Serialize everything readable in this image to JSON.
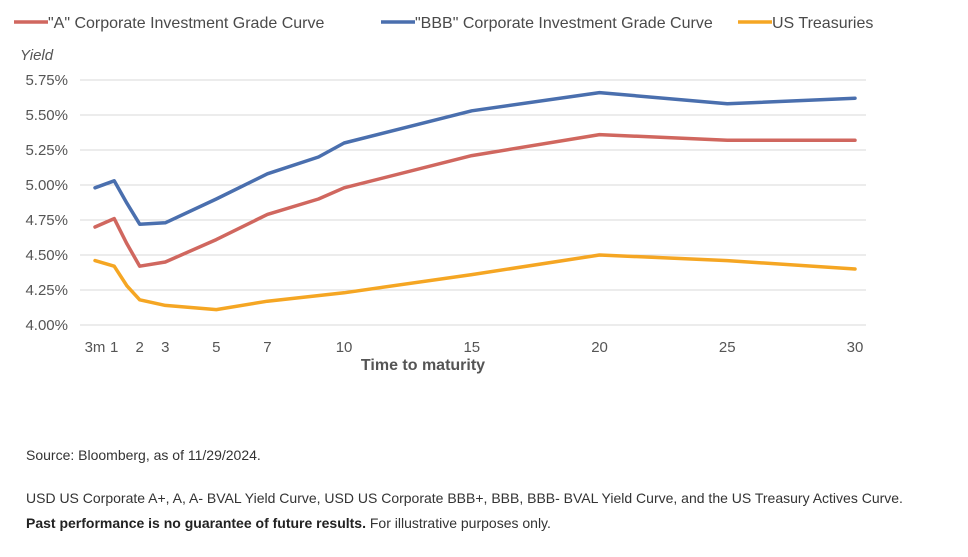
{
  "chart_data": {
    "type": "line",
    "ylabel": "Yield",
    "xlabel": "Time to maturity",
    "x": [
      0.25,
      1,
      2,
      3,
      5,
      7,
      10,
      15,
      20,
      25,
      30
    ],
    "x_tick_labels": [
      "3m",
      "1",
      "2",
      "3",
      "5",
      "7",
      "10",
      "15",
      "20",
      "25",
      "30"
    ],
    "ylim": [
      4.0,
      5.75
    ],
    "y_ticks": [
      "4.00%",
      "4.25%",
      "4.50%",
      "4.75%",
      "5.00%",
      "5.25%",
      "5.50%",
      "5.75%"
    ],
    "grid": true,
    "legend_position": "top",
    "series": [
      {
        "name": "\"A\" Corporate Investment Grade Curve",
        "color": "#d0675f",
        "points": [
          [
            0.25,
            4.7
          ],
          [
            1,
            4.76
          ],
          [
            1.5,
            4.58
          ],
          [
            2,
            4.42
          ],
          [
            3,
            4.45
          ],
          [
            5,
            4.61
          ],
          [
            7,
            4.79
          ],
          [
            9,
            4.9
          ],
          [
            10,
            4.98
          ],
          [
            15,
            5.21
          ],
          [
            20,
            5.36
          ],
          [
            25,
            5.32
          ],
          [
            30,
            5.32
          ]
        ]
      },
      {
        "name": "\"BBB\" Corporate Investment Grade Curve",
        "color": "#4a6fae",
        "points": [
          [
            0.25,
            4.98
          ],
          [
            1,
            5.03
          ],
          [
            1.5,
            4.87
          ],
          [
            2,
            4.72
          ],
          [
            3,
            4.73
          ],
          [
            5,
            4.9
          ],
          [
            7,
            5.08
          ],
          [
            9,
            5.2
          ],
          [
            10,
            5.3
          ],
          [
            15,
            5.53
          ],
          [
            20,
            5.66
          ],
          [
            25,
            5.58
          ],
          [
            30,
            5.62
          ]
        ]
      },
      {
        "name": "US Treasuries",
        "color": "#f5a623",
        "points": [
          [
            0.25,
            4.46
          ],
          [
            1,
            4.42
          ],
          [
            1.5,
            4.28
          ],
          [
            2,
            4.18
          ],
          [
            3,
            4.14
          ],
          [
            5,
            4.11
          ],
          [
            7,
            4.17
          ],
          [
            10,
            4.23
          ],
          [
            15,
            4.36
          ],
          [
            20,
            4.5
          ],
          [
            25,
            4.46
          ],
          [
            30,
            4.4
          ]
        ]
      }
    ]
  },
  "notes": {
    "source": "Source: Bloomberg, as of 11/29/2024.",
    "description": "USD US Corporate A+, A, A- BVAL Yield Curve, USD US Corporate BBB+, BBB, BBB- BVAL Yield Curve, and the US Treasury Actives Curve.",
    "disclaimer_bold": "Past performance is no guarantee of future results.",
    "disclaimer_rest": " For illustrative purposes only."
  }
}
